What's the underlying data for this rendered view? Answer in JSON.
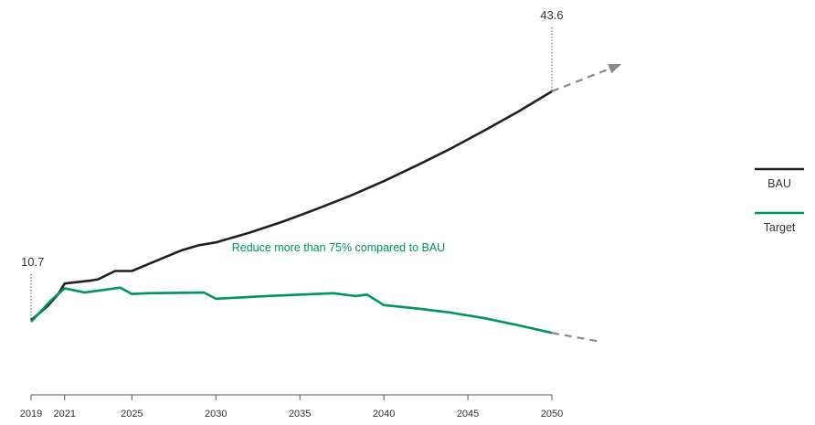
{
  "chart_data": {
    "type": "line",
    "title": "",
    "xlabel": "",
    "ylabel": "",
    "xlim": [
      2019,
      2050
    ],
    "ylim": [
      0,
      48
    ],
    "x_ticks": [
      "2019",
      "2021",
      "2025",
      "2030",
      "2035",
      "2040",
      "2045",
      "2050"
    ],
    "grid": false,
    "legend_placement": "right",
    "series": [
      {
        "name": "BAU",
        "color": "#231f20",
        "points": [
          [
            2019,
            10.7
          ],
          [
            2020,
            12.8
          ],
          [
            2020.6,
            14.4
          ],
          [
            2021,
            16.0
          ],
          [
            2022.5,
            16.4
          ],
          [
            2023,
            16.6
          ],
          [
            2024,
            17.8
          ],
          [
            2025,
            17.8
          ],
          [
            2026,
            18.8
          ],
          [
            2027,
            19.8
          ],
          [
            2028,
            20.8
          ],
          [
            2029,
            21.5
          ],
          [
            2030,
            21.9
          ],
          [
            2032,
            23.3
          ],
          [
            2034,
            24.9
          ],
          [
            2036,
            26.7
          ],
          [
            2038,
            28.6
          ],
          [
            2040,
            30.7
          ],
          [
            2042,
            33.0
          ],
          [
            2044,
            35.4
          ],
          [
            2046,
            38.0
          ],
          [
            2048,
            40.7
          ],
          [
            2050,
            43.6
          ]
        ],
        "projection": [
          [
            2050,
            43.6
          ],
          [
            2054,
            47.4
          ]
        ]
      },
      {
        "name": "Target",
        "color": "#00945e",
        "points": [
          [
            2019,
            10.5
          ],
          [
            2020.2,
            13.6
          ],
          [
            2021,
            15.3
          ],
          [
            2022,
            14.8
          ],
          [
            2022.2,
            14.7
          ],
          [
            2024.3,
            15.4
          ],
          [
            2025,
            14.5
          ],
          [
            2026,
            14.6
          ],
          [
            2029.3,
            14.7
          ],
          [
            2030,
            13.8
          ],
          [
            2033,
            14.2
          ],
          [
            2037,
            14.6
          ],
          [
            2038.3,
            14.2
          ],
          [
            2039,
            14.4
          ],
          [
            2040,
            12.9
          ],
          [
            2042,
            12.4
          ],
          [
            2044,
            11.8
          ],
          [
            2046,
            11.0
          ],
          [
            2048,
            10.0
          ],
          [
            2050,
            8.9
          ]
        ],
        "projection": [
          [
            2050,
            8.9
          ],
          [
            2053,
            7.6
          ]
        ]
      }
    ],
    "value_labels": [
      {
        "x": 2019,
        "y": 10.7,
        "text": "10.7"
      },
      {
        "x": 2050,
        "y": 43.6,
        "text": "43.6"
      }
    ],
    "annotation": {
      "text": "Reduce more than 75% compared to BAU",
      "x": 2037.3,
      "y": 19.2,
      "color": "#00945e"
    },
    "projection_color": "#8a8a8a"
  }
}
